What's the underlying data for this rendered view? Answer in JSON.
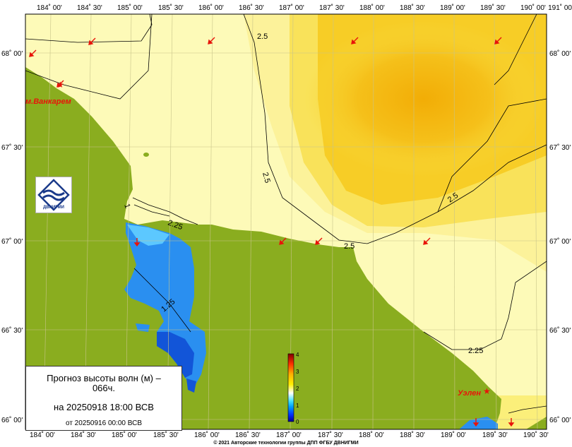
{
  "map": {
    "lon_labels": [
      "184˚ 00'",
      "184˚ 30'",
      "185˚ 00'",
      "185˚ 30'",
      "186˚ 00'",
      "186˚ 30'",
      "187˚ 00'",
      "187˚ 30'",
      "188˚ 00'",
      "188˚ 30'",
      "189˚ 00'",
      "189˚ 30'",
      "190˚ 00'",
      "190˚ 30'",
      "191˚ 00'"
    ],
    "lat_labels": [
      "68˚ 00'",
      "67˚ 30'",
      "67˚ 00'",
      "66˚ 30'",
      "66˚ 00'"
    ],
    "contours": [
      "2.5",
      "2.5",
      "2.5",
      "2.5",
      "2.25",
      "2.25",
      "1.25",
      "1"
    ],
    "places": [
      "м.Ванкарем",
      "Уэлен"
    ],
    "colorbar": {
      "ticks": [
        "4",
        "3",
        "2",
        "1",
        "0"
      ],
      "colors": [
        "#000090",
        "#0030ff",
        "#00a0ff",
        "#40e0ff",
        "#ffffc0",
        "#fff000",
        "#ffb000",
        "#ff5000",
        "#e00000",
        "#800000"
      ]
    },
    "copyright": "© 2021 Авторские технологии группы ДПП ФГБУ ДВНИГМИ",
    "logo_text": "ДВНИГМИ",
    "colors": {
      "land": "#8aad1f",
      "sea_light": "#fdfab8",
      "sea_mid": "#fbef7a",
      "sea_high": "#f7cd1e",
      "sea_peak": "#f3b30a",
      "lagoon": "#2a8ff0",
      "arrow": "#e8140a"
    }
  },
  "title": {
    "line1": "Прогноз высоты волн (м) – 066ч.",
    "line2": "на 20250918 18:00 ВСВ",
    "line3": "от 20250916 00:00 ВСВ"
  }
}
